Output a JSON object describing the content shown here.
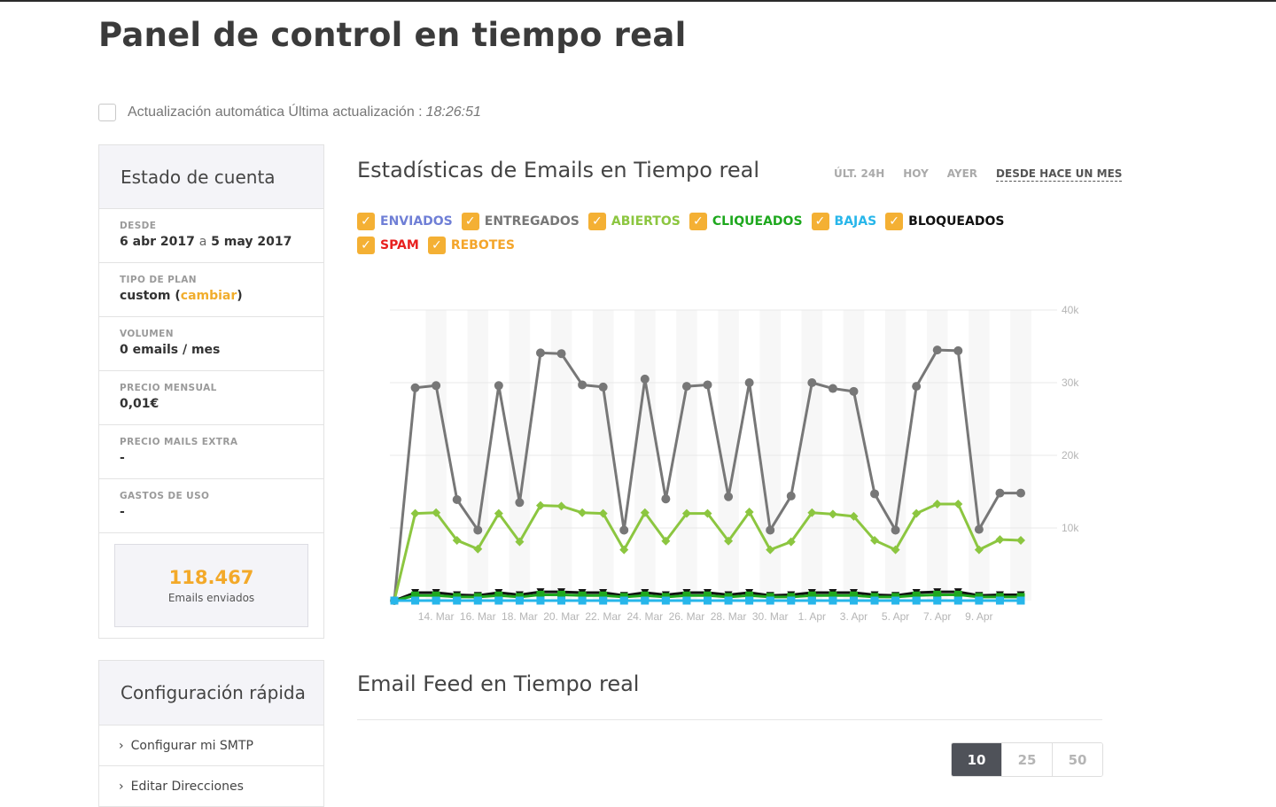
{
  "page": {
    "title": "Panel de control en tiempo real",
    "auto_update_label": "Actualización automática Última actualización :",
    "auto_update_time": "18:26:51"
  },
  "account": {
    "title": "Estado de cuenta",
    "desde_label": "DESDE",
    "desde_start": "6 abr 2017",
    "desde_sep": "a",
    "desde_end": "5 may 2017",
    "plan_label": "TIPO DE PLAN",
    "plan_value": "custom (",
    "plan_link": "cambiar",
    "plan_close": ")",
    "volume_label": "VOLUMEN",
    "volume_value": "0 emails / mes",
    "price_label": "PRECIO MENSUAL",
    "price_value": "0,01€",
    "extra_label": "PRECIO MAILS EXTRA",
    "extra_value": "-",
    "usage_label": "GASTOS DE USO",
    "usage_value": "-",
    "sent_count": "118.467",
    "sent_label": "Emails enviados"
  },
  "quick_config": {
    "title": "Configuración rápida",
    "items": [
      "Configurar mi SMTP",
      "Editar Direcciones"
    ]
  },
  "stats": {
    "title": "Estadísticas de Emails en Tiempo real",
    "ranges": [
      "ÚLT. 24H",
      "HOY",
      "AYER",
      "DESDE HACE UN MES"
    ],
    "active_range": "DESDE HACE UN MES"
  },
  "legend": [
    {
      "label": "ENVIADOS",
      "color": "#6f7fd6"
    },
    {
      "label": "ENTREGADOS",
      "color": "#777777"
    },
    {
      "label": "ABIERTOS",
      "color": "#8cc640"
    },
    {
      "label": "CLIQUEADOS",
      "color": "#1ea81e"
    },
    {
      "label": "BAJAS",
      "color": "#27b6ea"
    },
    {
      "label": "BLOQUEADOS",
      "color": "#111111"
    },
    {
      "label": "SPAM",
      "color": "#e8201f"
    },
    {
      "label": "REBOTES",
      "color": "#f4a52a"
    }
  ],
  "chart_data": {
    "type": "line",
    "ylim": [
      0,
      40000
    ],
    "yticks": [
      "10k",
      "20k",
      "30k",
      "40k"
    ],
    "xticks": [
      "14. Mar",
      "16. Mar",
      "18. Mar",
      "20. Mar",
      "22. Mar",
      "24. Mar",
      "26. Mar",
      "28. Mar",
      "30. Mar",
      "1. Apr",
      "3. Apr",
      "5. Apr",
      "7. Apr",
      "9. Apr"
    ],
    "series": [
      {
        "name": "ENTREGADOS",
        "color": "#777777",
        "marker": "circle",
        "values": [
          0,
          29300,
          29600,
          13900,
          9700,
          29600,
          13500,
          34100,
          34000,
          29700,
          29400,
          9700,
          30500,
          14000,
          29500,
          29700,
          14300,
          30000,
          9700,
          14400,
          30000,
          29200,
          28800,
          14700,
          9700,
          29500,
          34500,
          34400,
          9800,
          14800,
          14800
        ]
      },
      {
        "name": "ABIERTOS",
        "color": "#8cc640",
        "marker": "diamond",
        "values": [
          0,
          12000,
          12100,
          8300,
          7100,
          12000,
          8100,
          13100,
          13000,
          12100,
          12000,
          7000,
          12100,
          8200,
          12000,
          12000,
          8200,
          12200,
          7000,
          8100,
          12100,
          11900,
          11600,
          8300,
          7000,
          12000,
          13300,
          13300,
          7000,
          8400,
          8300
        ]
      },
      {
        "name": "BLOQUEADOS",
        "color": "#111111",
        "marker": "triangle-down",
        "values": [
          0,
          1100,
          1100,
          800,
          700,
          1100,
          800,
          1200,
          1200,
          1100,
          1100,
          700,
          1100,
          800,
          1100,
          1100,
          800,
          1100,
          700,
          800,
          1100,
          1100,
          1100,
          800,
          700,
          1100,
          1200,
          1200,
          700,
          800,
          800
        ]
      },
      {
        "name": "CLIQUEADOS",
        "color": "#1ea81e",
        "marker": "square",
        "values": [
          0,
          700,
          700,
          500,
          500,
          700,
          500,
          800,
          800,
          700,
          700,
          500,
          700,
          500,
          700,
          700,
          500,
          700,
          500,
          500,
          700,
          700,
          700,
          500,
          500,
          700,
          800,
          800,
          500,
          500,
          500
        ]
      },
      {
        "name": "BAJAS",
        "color": "#27b6ea",
        "marker": "square",
        "values": [
          0,
          0,
          0,
          0,
          0,
          0,
          0,
          0,
          0,
          0,
          0,
          0,
          0,
          0,
          0,
          0,
          0,
          0,
          0,
          0,
          0,
          0,
          0,
          0,
          0,
          0,
          0,
          0,
          0,
          0,
          0
        ]
      }
    ]
  },
  "feed": {
    "title": "Email Feed en Tiempo real",
    "page_sizes": [
      "10",
      "25",
      "50"
    ],
    "active_page_size": "10"
  }
}
